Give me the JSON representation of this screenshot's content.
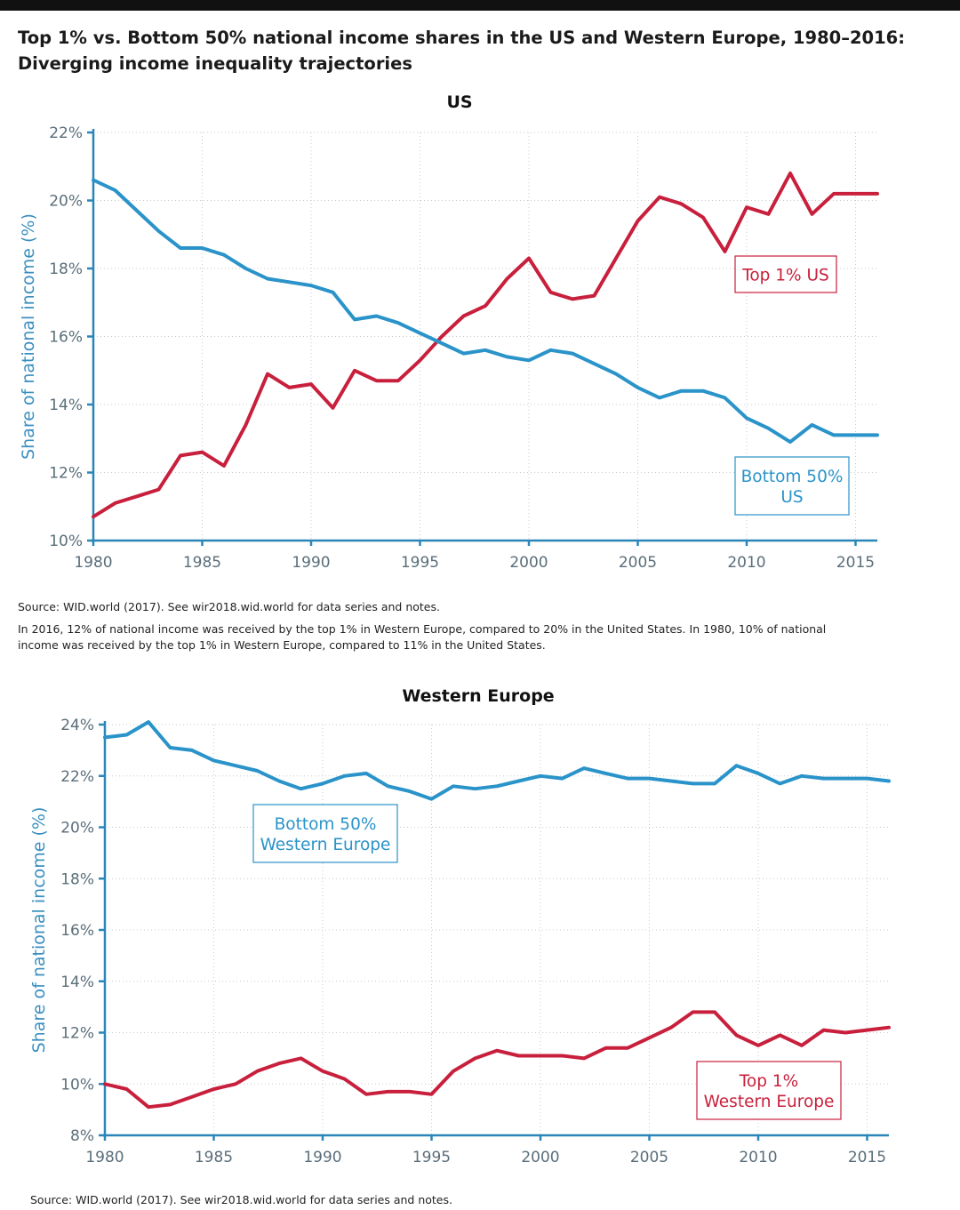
{
  "title_line1": "Top 1% vs. Bottom 50% national income shares in the US and Western Europe, 1980–2016:",
  "title_line2": "Diverging income inequality trajectories",
  "source_us": "Source:  WID.world (2017). See wir2018.wid.world for data series and notes.",
  "note_line1": "In 2016, 12% of national income was received by the top 1% in Western Europe, compared to 20% in the United States. In 1980, 10% of national",
  "note_line2": "income was received by the top 1% in Western Europe, compared to 11% in the United States.",
  "source_eu": "Source:  WID.world (2017). See wir2018.wid.world for data series and notes.",
  "colors": {
    "top1": "#c8203c",
    "bottom50": "#2a93c9",
    "axis": "#2a86b8"
  },
  "chart_data": [
    {
      "type": "line",
      "title": "US",
      "xlabel": "",
      "ylabel": "Share of national income (%)",
      "xlim": [
        1980,
        2016
      ],
      "ylim": [
        10,
        22
      ],
      "yticks": [
        10,
        12,
        14,
        16,
        18,
        20,
        22
      ],
      "ytick_labels": [
        "10%",
        "12%",
        "14%",
        "16%",
        "18%",
        "20%",
        "22%"
      ],
      "xticks": [
        1980,
        1985,
        1990,
        1995,
        2000,
        2005,
        2010,
        2015
      ],
      "xtick_labels": [
        "1980",
        "1985",
        "1990",
        "1995",
        "2000",
        "2005",
        "2010",
        "2015"
      ],
      "grid": true,
      "x": [
        1980,
        1981,
        1982,
        1983,
        1984,
        1985,
        1986,
        1987,
        1988,
        1989,
        1990,
        1991,
        1992,
        1993,
        1994,
        1995,
        1996,
        1997,
        1998,
        1999,
        2000,
        2001,
        2002,
        2003,
        2004,
        2005,
        2006,
        2007,
        2008,
        2009,
        2010,
        2011,
        2012,
        2013,
        2014,
        2015,
        2016
      ],
      "series": [
        {
          "name": "Top 1% US",
          "label_lines": [
            "Top 1% US"
          ],
          "color": "#c8203c",
          "values": [
            10.7,
            11.1,
            11.3,
            11.5,
            12.5,
            12.6,
            12.2,
            13.4,
            14.9,
            14.5,
            14.6,
            13.9,
            15.0,
            14.7,
            14.7,
            15.3,
            16.0,
            16.6,
            16.9,
            17.7,
            18.3,
            17.3,
            17.1,
            17.2,
            18.3,
            19.4,
            20.1,
            19.9,
            19.5,
            18.5,
            19.8,
            19.6,
            20.8,
            19.6,
            20.2,
            20.2,
            20.2
          ]
        },
        {
          "name": "Bottom 50% US",
          "label_lines": [
            "Bottom 50%",
            "US"
          ],
          "color": "#2a93c9",
          "values": [
            20.6,
            20.3,
            19.7,
            19.1,
            18.6,
            18.6,
            18.4,
            18.0,
            17.7,
            17.6,
            17.5,
            17.3,
            16.5,
            16.6,
            16.4,
            16.1,
            15.8,
            15.5,
            15.6,
            15.4,
            15.3,
            15.6,
            15.5,
            15.2,
            14.9,
            14.5,
            14.2,
            14.4,
            14.4,
            14.2,
            13.6,
            13.3,
            12.9,
            13.4,
            13.1,
            13.1,
            13.1
          ]
        }
      ]
    },
    {
      "type": "line",
      "title": "Western Europe",
      "xlabel": "",
      "ylabel": "Share of national income (%)",
      "xlim": [
        1980,
        2016
      ],
      "ylim": [
        8,
        24
      ],
      "yticks": [
        8,
        10,
        12,
        14,
        16,
        18,
        20,
        22,
        24
      ],
      "ytick_labels": [
        "8%",
        "10%",
        "12%",
        "14%",
        "16%",
        "18%",
        "20%",
        "22%",
        "24%"
      ],
      "xticks": [
        1980,
        1985,
        1990,
        1995,
        2000,
        2005,
        2010,
        2015
      ],
      "xtick_labels": [
        "1980",
        "1985",
        "1990",
        "1995",
        "2000",
        "2005",
        "2010",
        "2015"
      ],
      "grid": true,
      "x": [
        1980,
        1981,
        1982,
        1983,
        1984,
        1985,
        1986,
        1987,
        1988,
        1989,
        1990,
        1991,
        1992,
        1993,
        1994,
        1995,
        1996,
        1997,
        1998,
        1999,
        2000,
        2001,
        2002,
        2003,
        2004,
        2005,
        2006,
        2007,
        2008,
        2009,
        2010,
        2011,
        2012,
        2013,
        2014,
        2015,
        2016
      ],
      "series": [
        {
          "name": "Bottom 50% Western Europe",
          "label_lines": [
            "Bottom 50%",
            "Western Europe"
          ],
          "color": "#2a93c9",
          "values": [
            23.5,
            23.6,
            24.1,
            23.1,
            23.0,
            22.6,
            22.4,
            22.2,
            21.8,
            21.5,
            21.7,
            22.0,
            22.1,
            21.6,
            21.4,
            21.1,
            21.6,
            21.5,
            21.6,
            21.8,
            22.0,
            21.9,
            22.3,
            22.1,
            21.9,
            21.9,
            21.8,
            21.7,
            21.7,
            22.4,
            22.1,
            21.7,
            22.0,
            21.9,
            21.9,
            21.9,
            21.8
          ]
        },
        {
          "name": "Top 1% Western Europe",
          "label_lines": [
            "Top 1%",
            "Western Europe"
          ],
          "color": "#c8203c",
          "values": [
            10.0,
            9.8,
            9.1,
            9.2,
            9.5,
            9.8,
            10.0,
            10.5,
            10.8,
            11.0,
            10.5,
            10.2,
            9.6,
            9.7,
            9.7,
            9.6,
            10.5,
            11.0,
            11.3,
            11.1,
            11.1,
            11.1,
            11.0,
            11.4,
            11.4,
            11.8,
            12.2,
            12.8,
            12.8,
            11.9,
            11.5,
            11.9,
            11.5,
            12.1,
            12.0,
            12.1,
            12.2
          ]
        }
      ]
    }
  ]
}
